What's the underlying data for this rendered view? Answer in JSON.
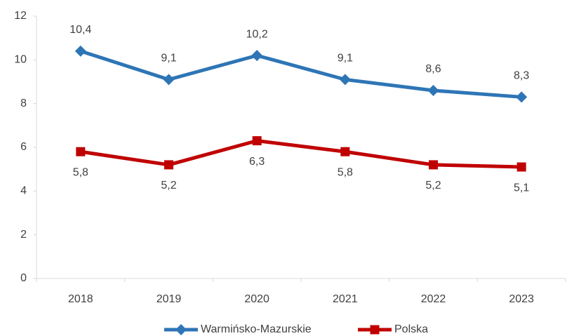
{
  "chart_data": {
    "type": "line",
    "categories": [
      "2018",
      "2019",
      "2020",
      "2021",
      "2022",
      "2023"
    ],
    "series": [
      {
        "name": "Warmińsko-Mazurskie",
        "color": "#2e75b6",
        "marker": "diamond",
        "values": [
          10.4,
          9.1,
          10.2,
          9.1,
          8.6,
          8.3
        ],
        "value_labels": [
          "10,4",
          "9,1",
          "10,2",
          "9,1",
          "8,6",
          "8,3"
        ]
      },
      {
        "name": "Polska",
        "color": "#c00000",
        "marker": "square",
        "values": [
          5.8,
          5.2,
          6.3,
          5.8,
          5.2,
          5.1
        ],
        "value_labels": [
          "5,8",
          "5,2",
          "6,3",
          "5,8",
          "5,2",
          "5,1"
        ]
      }
    ],
    "ylim": [
      0,
      12
    ],
    "yticks": [
      0,
      2,
      4,
      6,
      8,
      10,
      12
    ],
    "grid": false,
    "legend": "bottom"
  }
}
